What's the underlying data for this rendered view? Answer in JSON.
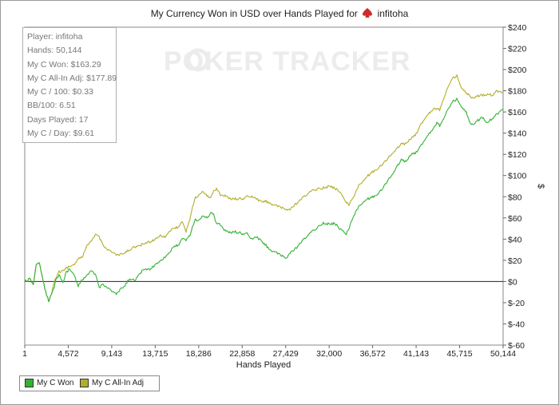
{
  "title_prefix": "My Currency Won in USD over Hands Played for",
  "title_player": "infitoha",
  "watermark_icon": "poker-chip-icon",
  "watermark": "POKER TRACKER",
  "stats": [
    "Player: infitoha",
    "Hands: 50,144",
    "My C Won: $163.29",
    "My C All-In Adj: $177.89",
    "My C / 100: $0.33",
    "BB/100: 6.51",
    "Days Played: 17",
    "My C / Day: $9.61"
  ],
  "legend": [
    {
      "label": "My C Won",
      "color": "#33b233"
    },
    {
      "label": "My C All-In Adj",
      "color": "#b3ae2a"
    }
  ],
  "chart_data": {
    "type": "line",
    "title": "My Currency Won in USD over Hands Played for infitoha",
    "xlabel": "Hands Played",
    "ylabel": "$",
    "xlim": [
      1,
      50144
    ],
    "ylim": [
      -60,
      240
    ],
    "x_ticks": [
      "1",
      "4,572",
      "9,143",
      "13,715",
      "18,286",
      "22,858",
      "27,429",
      "32,000",
      "36,572",
      "41,143",
      "45,715",
      "50,144"
    ],
    "y_ticks": [
      "$-60",
      "$-40",
      "$-20",
      "$0",
      "$20",
      "$40",
      "$60",
      "$80",
      "$100",
      "$120",
      "$140",
      "$160",
      "$180",
      "$200",
      "$220",
      "$240"
    ],
    "legend_position": "bottom-left",
    "series": [
      {
        "name": "My C Won",
        "color": "#33b233",
        "points": [
          [
            1,
            0
          ],
          [
            500,
            2
          ],
          [
            900,
            -2
          ],
          [
            1200,
            15
          ],
          [
            1500,
            19
          ],
          [
            1800,
            5
          ],
          [
            2200,
            -10
          ],
          [
            2500,
            -18
          ],
          [
            2800,
            -12
          ],
          [
            3100,
            -5
          ],
          [
            3300,
            4
          ],
          [
            3700,
            6
          ],
          [
            4000,
            -2
          ],
          [
            4300,
            8
          ],
          [
            4700,
            12
          ],
          [
            5200,
            6
          ],
          [
            5600,
            -5
          ],
          [
            6000,
            2
          ],
          [
            6500,
            5
          ],
          [
            7000,
            10
          ],
          [
            7500,
            5
          ],
          [
            7800,
            -6
          ],
          [
            8200,
            -2
          ],
          [
            8700,
            -6
          ],
          [
            9143,
            -9
          ],
          [
            9600,
            -12
          ],
          [
            10000,
            -8
          ],
          [
            10500,
            -4
          ],
          [
            11000,
            3
          ],
          [
            11500,
            1
          ],
          [
            12000,
            6
          ],
          [
            12500,
            12
          ],
          [
            13000,
            11
          ],
          [
            13715,
            16
          ],
          [
            14200,
            20
          ],
          [
            14700,
            23
          ],
          [
            15200,
            28
          ],
          [
            15700,
            33
          ],
          [
            16200,
            35
          ],
          [
            16500,
            40
          ],
          [
            16900,
            39
          ],
          [
            17400,
            45
          ],
          [
            17800,
            58
          ],
          [
            18286,
            58
          ],
          [
            18700,
            62
          ],
          [
            19200,
            60
          ],
          [
            19500,
            66
          ],
          [
            19800,
            63
          ],
          [
            20100,
            55
          ],
          [
            20500,
            54
          ],
          [
            21000,
            48
          ],
          [
            21500,
            46
          ],
          [
            22000,
            47
          ],
          [
            22858,
            45
          ],
          [
            23300,
            45
          ],
          [
            23800,
            40
          ],
          [
            24300,
            42
          ],
          [
            24800,
            38
          ],
          [
            25200,
            35
          ],
          [
            25700,
            30
          ],
          [
            26200,
            28
          ],
          [
            26700,
            25
          ],
          [
            27429,
            22
          ],
          [
            27800,
            27
          ],
          [
            28300,
            30
          ],
          [
            28800,
            35
          ],
          [
            29300,
            40
          ],
          [
            29800,
            45
          ],
          [
            30300,
            48
          ],
          [
            30800,
            52
          ],
          [
            31200,
            55
          ],
          [
            32000,
            54
          ],
          [
            32500,
            55
          ],
          [
            33000,
            50
          ],
          [
            33400,
            48
          ],
          [
            33700,
            45
          ],
          [
            34000,
            50
          ],
          [
            34500,
            63
          ],
          [
            35000,
            70
          ],
          [
            35500,
            75
          ],
          [
            36000,
            78
          ],
          [
            36572,
            80
          ],
          [
            37000,
            83
          ],
          [
            37500,
            87
          ],
          [
            38000,
            95
          ],
          [
            38500,
            100
          ],
          [
            39000,
            108
          ],
          [
            39500,
            115
          ],
          [
            40000,
            113
          ],
          [
            40500,
            120
          ],
          [
            41143,
            122
          ],
          [
            41500,
            128
          ],
          [
            42000,
            135
          ],
          [
            42500,
            141
          ],
          [
            42900,
            146
          ],
          [
            43200,
            150
          ],
          [
            43500,
            147
          ],
          [
            43800,
            152
          ],
          [
            44200,
            160
          ],
          [
            44600,
            165
          ],
          [
            44900,
            170
          ],
          [
            45300,
            172
          ],
          [
            45715,
            165
          ],
          [
            46000,
            162
          ],
          [
            46300,
            160
          ],
          [
            46600,
            150
          ],
          [
            47000,
            147
          ],
          [
            47500,
            152
          ],
          [
            48000,
            155
          ],
          [
            48500,
            150
          ],
          [
            49000,
            154
          ],
          [
            49500,
            158
          ],
          [
            50144,
            163
          ]
        ]
      },
      {
        "name": "My C All-In Adj",
        "color": "#b3ae2a",
        "points": [
          [
            1,
            0
          ],
          [
            500,
            2
          ],
          [
            900,
            -2
          ],
          [
            1200,
            15
          ],
          [
            1500,
            19
          ],
          [
            1800,
            5
          ],
          [
            2200,
            -10
          ],
          [
            2500,
            -18
          ],
          [
            2800,
            -12
          ],
          [
            3100,
            0
          ],
          [
            3500,
            9
          ],
          [
            4000,
            10
          ],
          [
            4572,
            14
          ],
          [
            5200,
            16
          ],
          [
            5600,
            21
          ],
          [
            6000,
            23
          ],
          [
            6500,
            33
          ],
          [
            7000,
            38
          ],
          [
            7500,
            45
          ],
          [
            7800,
            42
          ],
          [
            8200,
            35
          ],
          [
            8700,
            30
          ],
          [
            9143,
            28
          ],
          [
            9600,
            25
          ],
          [
            10000,
            25
          ],
          [
            10500,
            27
          ],
          [
            11000,
            30
          ],
          [
            11500,
            33
          ],
          [
            12000,
            33
          ],
          [
            12500,
            36
          ],
          [
            13000,
            37
          ],
          [
            13715,
            40
          ],
          [
            14200,
            44
          ],
          [
            14700,
            42
          ],
          [
            15200,
            48
          ],
          [
            15700,
            50
          ],
          [
            16200,
            52
          ],
          [
            16500,
            56
          ],
          [
            16900,
            47
          ],
          [
            17400,
            62
          ],
          [
            17800,
            78
          ],
          [
            18286,
            82
          ],
          [
            18700,
            85
          ],
          [
            19200,
            80
          ],
          [
            19500,
            80
          ],
          [
            19800,
            85
          ],
          [
            20100,
            88
          ],
          [
            20500,
            82
          ],
          [
            21000,
            81
          ],
          [
            21500,
            78
          ],
          [
            22000,
            78
          ],
          [
            22858,
            78
          ],
          [
            23300,
            80
          ],
          [
            23800,
            80
          ],
          [
            24300,
            78
          ],
          [
            24800,
            75
          ],
          [
            25200,
            76
          ],
          [
            25700,
            74
          ],
          [
            26200,
            72
          ],
          [
            26700,
            70
          ],
          [
            27429,
            68
          ],
          [
            27800,
            68
          ],
          [
            28300,
            72
          ],
          [
            28800,
            76
          ],
          [
            29300,
            80
          ],
          [
            29800,
            84
          ],
          [
            30300,
            86
          ],
          [
            30800,
            88
          ],
          [
            31200,
            88
          ],
          [
            32000,
            90
          ],
          [
            32500,
            88
          ],
          [
            33000,
            85
          ],
          [
            33400,
            80
          ],
          [
            33700,
            75
          ],
          [
            34000,
            72
          ],
          [
            34500,
            81
          ],
          [
            35000,
            90
          ],
          [
            35500,
            95
          ],
          [
            36000,
            100
          ],
          [
            36572,
            104
          ],
          [
            37000,
            107
          ],
          [
            37500,
            110
          ],
          [
            38000,
            116
          ],
          [
            38500,
            120
          ],
          [
            39000,
            125
          ],
          [
            39500,
            130
          ],
          [
            40000,
            130
          ],
          [
            40500,
            135
          ],
          [
            41143,
            140
          ],
          [
            41500,
            148
          ],
          [
            42000,
            155
          ],
          [
            42500,
            160
          ],
          [
            42900,
            164
          ],
          [
            43200,
            163
          ],
          [
            43500,
            162
          ],
          [
            43800,
            170
          ],
          [
            44200,
            180
          ],
          [
            44600,
            187
          ],
          [
            44900,
            192
          ],
          [
            45300,
            194
          ],
          [
            45715,
            183
          ],
          [
            46000,
            180
          ],
          [
            46300,
            178
          ],
          [
            46600,
            175
          ],
          [
            47000,
            172
          ],
          [
            47500,
            175
          ],
          [
            48000,
            176
          ],
          [
            48500,
            177
          ],
          [
            49000,
            176
          ],
          [
            49500,
            180
          ],
          [
            50144,
            178
          ]
        ]
      }
    ]
  }
}
